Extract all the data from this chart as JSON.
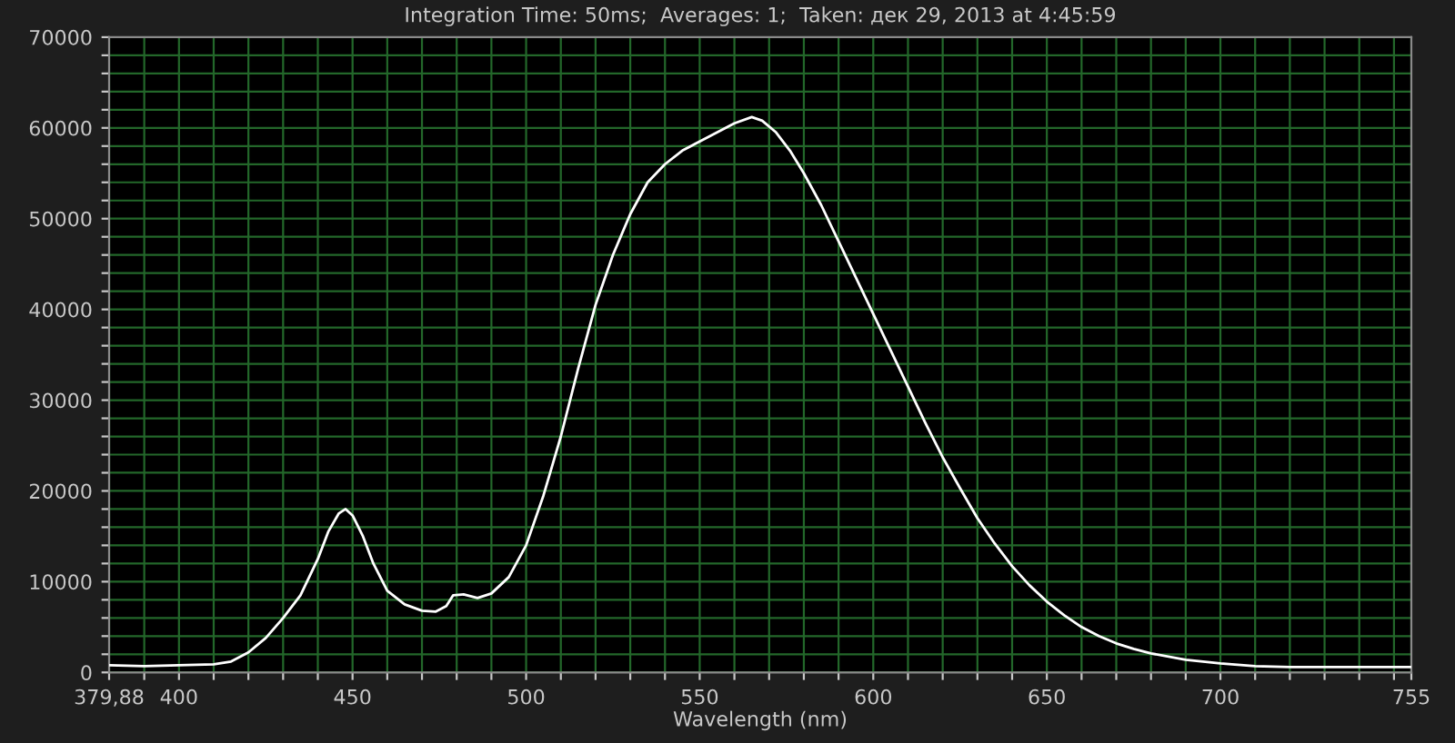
{
  "chart_data": {
    "type": "line",
    "title": "Integration Time: 50ms;  Averages: 1;  Taken: дек 29, 2013 at 4:45:59",
    "xlabel": "Wavelength (nm)",
    "x": [
      379.88,
      390,
      400,
      410,
      415,
      420,
      425,
      430,
      435,
      440,
      443,
      446,
      448,
      450,
      453,
      456,
      460,
      465,
      470,
      474,
      477,
      479,
      482,
      486,
      490,
      495,
      500,
      505,
      510,
      515,
      520,
      525,
      530,
      535,
      540,
      545,
      550,
      555,
      560,
      565,
      568,
      572,
      576,
      580,
      585,
      590,
      595,
      600,
      605,
      610,
      615,
      620,
      625,
      630,
      635,
      640,
      645,
      650,
      655,
      660,
      665,
      670,
      675,
      680,
      690,
      700,
      710,
      720,
      740,
      755
    ],
    "series": [
      {
        "color": "#ffffff",
        "values": [
          800,
          700,
          800,
          900,
          1200,
          2200,
          3800,
          6000,
          8500,
          12500,
          15500,
          17500,
          18000,
          17300,
          15000,
          12000,
          9000,
          7500,
          6800,
          6700,
          7300,
          8500,
          8600,
          8200,
          8700,
          10500,
          14000,
          19500,
          26000,
          33500,
          40500,
          46000,
          50500,
          54000,
          56000,
          57500,
          58500,
          59500,
          60500,
          61200,
          60800,
          59500,
          57500,
          55000,
          51500,
          47500,
          43500,
          39500,
          35500,
          31500,
          27500,
          23700,
          20300,
          17000,
          14200,
          11700,
          9600,
          7800,
          6300,
          5000,
          4000,
          3200,
          2600,
          2100,
          1400,
          1000,
          700,
          600,
          600,
          600
        ]
      }
    ],
    "xlim": [
      379.88,
      755
    ],
    "xticks": [
      {
        "value": 379.88,
        "label": "379,88"
      },
      {
        "value": 390,
        "label": null
      },
      400,
      {
        "value": 410,
        "label": null
      },
      {
        "value": 420,
        "label": null
      },
      {
        "value": 430,
        "label": null
      },
      {
        "value": 440,
        "label": null
      },
      450,
      {
        "value": 460,
        "label": null
      },
      {
        "value": 470,
        "label": null
      },
      {
        "value": 480,
        "label": null
      },
      {
        "value": 490,
        "label": null
      },
      500,
      {
        "value": 510,
        "label": null
      },
      {
        "value": 520,
        "label": null
      },
      {
        "value": 530,
        "label": null
      },
      {
        "value": 540,
        "label": null
      },
      550,
      {
        "value": 560,
        "label": null
      },
      {
        "value": 570,
        "label": null
      },
      {
        "value": 580,
        "label": null
      },
      {
        "value": 590,
        "label": null
      },
      600,
      {
        "value": 610,
        "label": null
      },
      {
        "value": 620,
        "label": null
      },
      {
        "value": 630,
        "label": null
      },
      {
        "value": 640,
        "label": null
      },
      650,
      {
        "value": 660,
        "label": null
      },
      {
        "value": 670,
        "label": null
      },
      {
        "value": 680,
        "label": null
      },
      {
        "value": 690,
        "label": null
      },
      700,
      {
        "value": 710,
        "label": null
      },
      {
        "value": 720,
        "label": null
      },
      {
        "value": 730,
        "label": null
      },
      {
        "value": 740,
        "label": null
      },
      {
        "value": 750,
        "label": null
      },
      755
    ],
    "ylim": [
      0,
      70000
    ],
    "yticks": [
      0,
      {
        "value": 2000,
        "label": null
      },
      {
        "value": 4000,
        "label": null
      },
      {
        "value": 6000,
        "label": null
      },
      {
        "value": 8000,
        "label": null
      },
      10000,
      {
        "value": 12000,
        "label": null
      },
      {
        "value": 14000,
        "label": null
      },
      {
        "value": 16000,
        "label": null
      },
      {
        "value": 18000,
        "label": null
      },
      20000,
      {
        "value": 22000,
        "label": null
      },
      {
        "value": 24000,
        "label": null
      },
      {
        "value": 26000,
        "label": null
      },
      {
        "value": 28000,
        "label": null
      },
      30000,
      {
        "value": 32000,
        "label": null
      },
      {
        "value": 34000,
        "label": null
      },
      {
        "value": 36000,
        "label": null
      },
      {
        "value": 38000,
        "label": null
      },
      40000,
      {
        "value": 42000,
        "label": null
      },
      {
        "value": 44000,
        "label": null
      },
      {
        "value": 46000,
        "label": null
      },
      {
        "value": 48000,
        "label": null
      },
      50000,
      {
        "value": 52000,
        "label": null
      },
      {
        "value": 54000,
        "label": null
      },
      {
        "value": 56000,
        "label": null
      },
      {
        "value": 58000,
        "label": null
      },
      60000,
      {
        "value": 62000,
        "label": null
      },
      {
        "value": 64000,
        "label": null
      },
      {
        "value": 66000,
        "label": null
      },
      {
        "value": 68000,
        "label": null
      },
      70000
    ],
    "grid": true,
    "line_style": "solid"
  }
}
